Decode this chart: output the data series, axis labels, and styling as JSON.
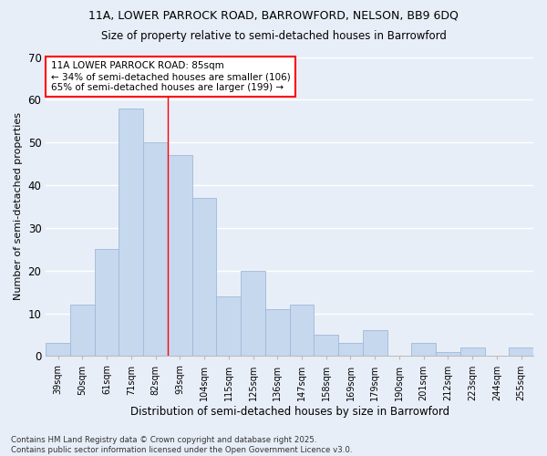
{
  "title1": "11A, LOWER PARROCK ROAD, BARROWFORD, NELSON, BB9 6DQ",
  "title2": "Size of property relative to semi-detached houses in Barrowford",
  "xlabel": "Distribution of semi-detached houses by size in Barrowford",
  "ylabel": "Number of semi-detached properties",
  "categories": [
    "39sqm",
    "50sqm",
    "61sqm",
    "71sqm",
    "82sqm",
    "93sqm",
    "104sqm",
    "115sqm",
    "125sqm",
    "136sqm",
    "147sqm",
    "158sqm",
    "169sqm",
    "179sqm",
    "190sqm",
    "201sqm",
    "212sqm",
    "223sqm",
    "244sqm",
    "255sqm"
  ],
  "values": [
    3,
    12,
    25,
    58,
    50,
    47,
    37,
    14,
    20,
    11,
    12,
    5,
    3,
    6,
    0,
    3,
    1,
    2,
    0,
    2
  ],
  "bar_color": "#c5d8ee",
  "bar_edge_color": "#a0b8d8",
  "background_color": "#e8eef8",
  "grid_color": "#ffffff",
  "ylim": [
    0,
    70
  ],
  "yticks": [
    0,
    10,
    20,
    30,
    40,
    50,
    60,
    70
  ],
  "annotation_title": "11A LOWER PARROCK ROAD: 85sqm",
  "annotation_line1": "← 34% of semi-detached houses are smaller (106)",
  "annotation_line2": "65% of semi-detached houses are larger (199) →",
  "redline_x": 4.5,
  "footer1": "Contains HM Land Registry data © Crown copyright and database right 2025.",
  "footer2": "Contains public sector information licensed under the Open Government Licence v3.0."
}
